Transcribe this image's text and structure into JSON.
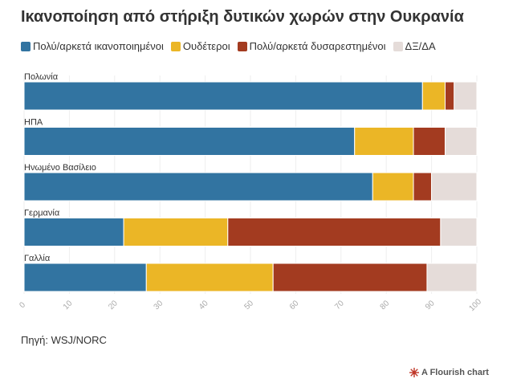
{
  "header": {
    "title": "Ικανοποίηση από στήριξη δυτικών χωρών στην Ουκρανία"
  },
  "footer": {
    "source": "Πηγή: WSJ/NORC",
    "credit": "A Flourish chart",
    "credit_icon": "flourish-logo-icon"
  },
  "chart_data": {
    "type": "bar",
    "orientation": "horizontal",
    "stacked": true,
    "title": "Ικανοποίηση από στήριξη δυτικών χωρών στην Ουκρανία",
    "categories": [
      "Πολωνία",
      "ΗΠΑ",
      "Ηνωμένο Βασίλειο",
      "Γερμανία",
      "Γαλλία"
    ],
    "series": [
      {
        "name": "Πολύ/αρκετά ικανοποιημένοι",
        "color": "#3274a1",
        "values": [
          88,
          73,
          77,
          22,
          27
        ]
      },
      {
        "name": "Ουδέτεροι",
        "color": "#ebb626",
        "values": [
          5,
          13,
          9,
          23,
          28
        ]
      },
      {
        "name": "Πολύ/αρκετά δυσαρεστημένοι",
        "color": "#a33b20",
        "values": [
          2,
          7,
          4,
          47,
          34
        ]
      },
      {
        "name": "ΔΞ/ΔΑ",
        "color": "#e5dcd9",
        "values": [
          5,
          7,
          10,
          8,
          11
        ]
      }
    ],
    "xlim": [
      0,
      100
    ],
    "xticks": [
      0,
      10,
      20,
      30,
      40,
      50,
      60,
      70,
      80,
      90,
      100
    ],
    "xlabel": "",
    "ylabel": "",
    "legend": "top-left",
    "grid": true
  }
}
